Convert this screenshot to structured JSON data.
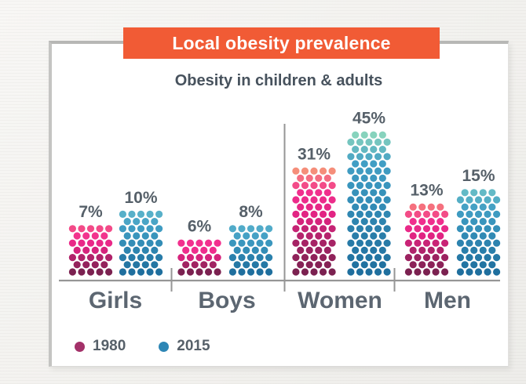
{
  "chart_data": {
    "type": "bar",
    "variant": "dot_pictogram",
    "title": "Local obesity prevalence",
    "subtitle": "Obesity in children & adults",
    "unit": "%",
    "categories": [
      "Girls",
      "Boys",
      "Women",
      "Men"
    ],
    "series": [
      {
        "name": "1980",
        "values": [
          7,
          6,
          31,
          13
        ],
        "labels": [
          "7%",
          "6%",
          "31%",
          "13%"
        ],
        "dot_rows": [
          7,
          5,
          15,
          10
        ]
      },
      {
        "name": "2015",
        "values": [
          10,
          8,
          45,
          15
        ],
        "labels": [
          "10%",
          "8%",
          "45%",
          "15%"
        ],
        "dot_rows": [
          9,
          7,
          20,
          12
        ]
      }
    ],
    "legend": {
      "position": "bottom-left",
      "items": [
        {
          "label": "1980",
          "color": "#a33169"
        },
        {
          "label": "2015",
          "color": "#2d86b5"
        }
      ]
    },
    "axis": {
      "baseline_visible": true,
      "gridlines": false
    },
    "style": {
      "banner_bg": "#f15b35",
      "banner_text": "#ffffff",
      "value_label_color": "#566069",
      "category_label_color": "#5c6671",
      "axis_color": "#969696",
      "series_gradients": {
        "1980": {
          "bottom": "#7b2150",
          "mid": [
            "#a82366",
            "#e12382",
            "#f2308e"
          ],
          "top_ramp": [
            [
              0.25,
              "#f2308e"
            ],
            [
              0.5,
              "#f5707e"
            ],
            [
              0.75,
              "#f58e7a"
            ],
            [
              1.0,
              "#f8a072"
            ]
          ]
        },
        "2015": {
          "bottom": "#1f6f9e",
          "mid": [
            "#2a7fab",
            "#3590b9",
            "#429fc4"
          ],
          "top_ramp": [
            [
              0.25,
              "#4aa5c8"
            ],
            [
              0.45,
              "#57b0c9"
            ],
            [
              0.6,
              "#63bac6"
            ],
            [
              1.0,
              "#87d3bd"
            ]
          ]
        }
      }
    }
  }
}
